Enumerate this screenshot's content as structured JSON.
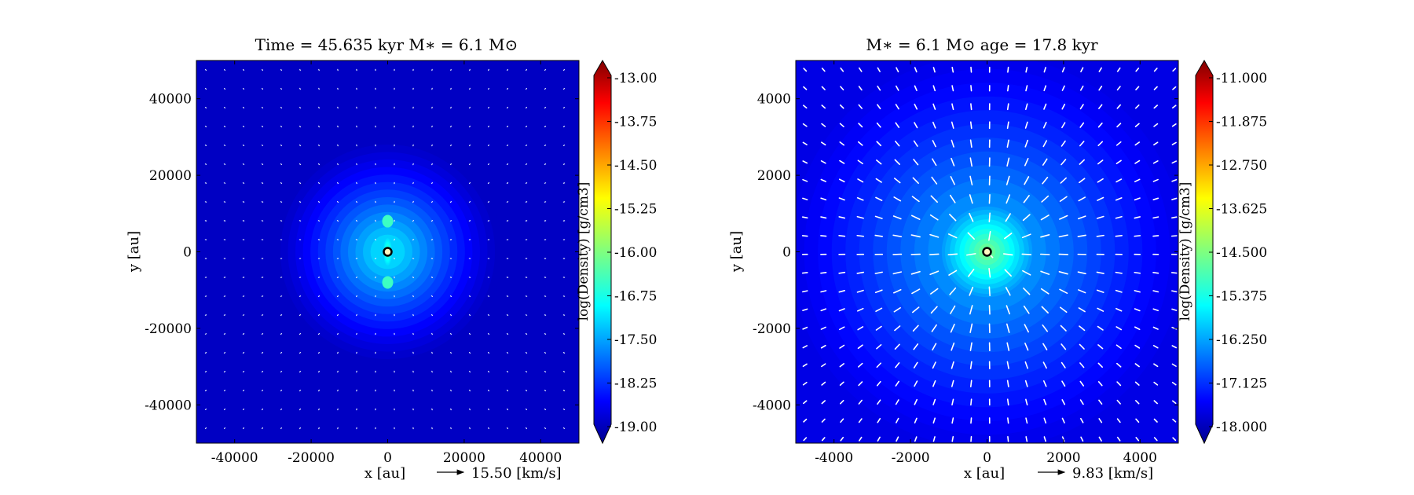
{
  "chart_data": [
    {
      "type": "heatmap",
      "title": "Time = 45.635 kyr    M∗ = 6.1 M⊙",
      "xlabel": "x [au]",
      "ylabel": "y [au]",
      "xlim": [
        -50000,
        50000
      ],
      "ylim": [
        -50000,
        50000
      ],
      "xticks": [
        -40000,
        -20000,
        0,
        20000,
        40000
      ],
      "yticks": [
        -40000,
        -20000,
        0,
        20000,
        40000
      ],
      "colorbar": {
        "label": "log(Density) [g/cm3]",
        "min": -19.0,
        "max": -13.0,
        "ticks": [
          "-13.00",
          "-13.75",
          "-14.50",
          "-15.25",
          "-16.00",
          "-16.75",
          "-17.50",
          "-18.25",
          "-19.00"
        ]
      },
      "field": {
        "background": -18.6,
        "envelope_peak": -17.0,
        "envelope_radius": 30000,
        "core_peak": -16.4,
        "core_radius": 2500,
        "lobe_offset_y": 8000
      },
      "quiver_key": "15.50 [km/s]",
      "star": {
        "x": 0,
        "y": 0
      }
    },
    {
      "type": "heatmap",
      "title": "M∗ = 6.1 M⊙          age = 17.8 kyr",
      "xlabel": "x [au]",
      "ylabel": "y [au]",
      "xlim": [
        -5000,
        5000
      ],
      "ylim": [
        -5000,
        5000
      ],
      "xticks": [
        -4000,
        -2000,
        0,
        2000,
        4000
      ],
      "yticks": [
        -4000,
        -2000,
        0,
        2000,
        4000
      ],
      "colorbar": {
        "label": "log(Density) [g/cm3]",
        "min": -18.0,
        "max": -11.0,
        "ticks": [
          "-11.000",
          "-11.875",
          "-12.750",
          "-13.625",
          "-14.500",
          "-15.375",
          "-16.250",
          "-17.125",
          "-18.000"
        ]
      },
      "field": {
        "background": -17.3,
        "envelope_peak": -15.9,
        "envelope_radius": 5500,
        "core_peak": -14.7,
        "core_radius": 1100
      },
      "quiver_key": "9.83 [km/s]",
      "star": {
        "x": 0,
        "y": 0
      }
    }
  ]
}
